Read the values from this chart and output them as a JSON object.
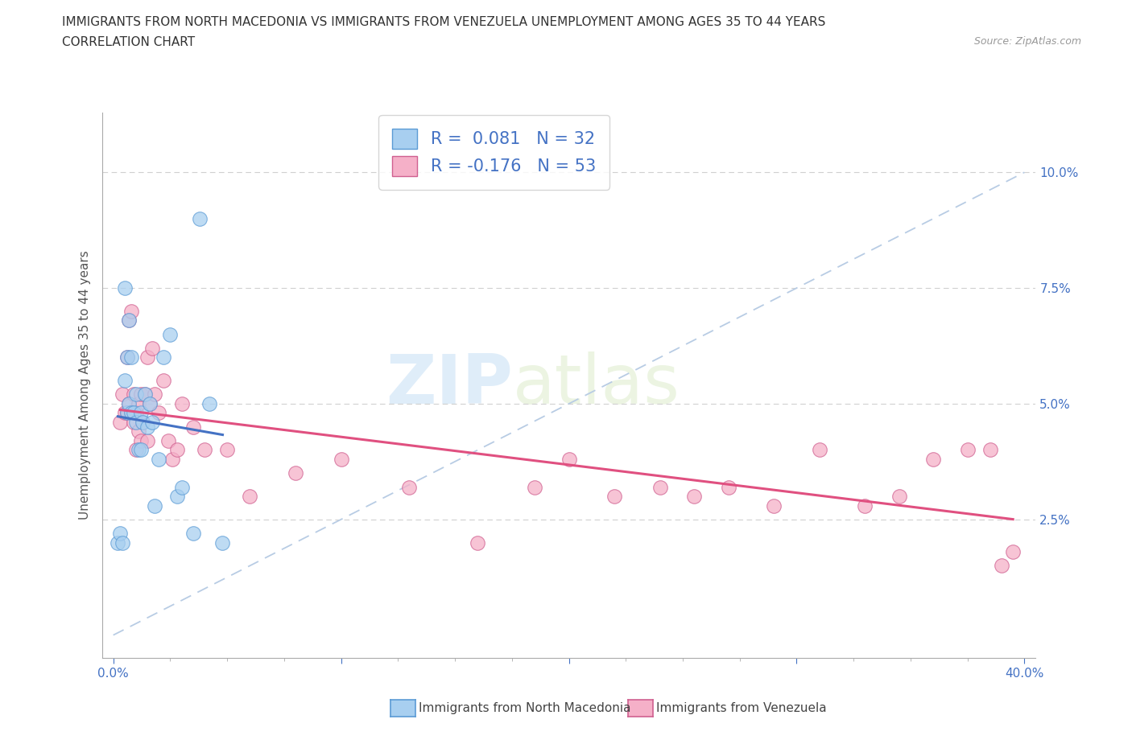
{
  "title_line1": "IMMIGRANTS FROM NORTH MACEDONIA VS IMMIGRANTS FROM VENEZUELA UNEMPLOYMENT AMONG AGES 35 TO 44 YEARS",
  "title_line2": "CORRELATION CHART",
  "source_text": "Source: ZipAtlas.com",
  "ylabel": "Unemployment Among Ages 35 to 44 years",
  "xlim": [
    -0.005,
    0.405
  ],
  "ylim": [
    -0.005,
    0.113
  ],
  "xticks": [
    0.0,
    0.1,
    0.2,
    0.3,
    0.4
  ],
  "xtick_labels": [
    "0.0%",
    "",
    "",
    "",
    "40.0%"
  ],
  "yticks": [
    0.025,
    0.05,
    0.075,
    0.1
  ],
  "ytick_labels": [
    "2.5%",
    "5.0%",
    "7.5%",
    "10.0%"
  ],
  "r_mac": 0.081,
  "n_mac": 32,
  "r_ven": -0.176,
  "n_ven": 53,
  "watermark_zip": "ZIP",
  "watermark_atlas": "atlas",
  "legend_label1": "Immigrants from North Macedonia",
  "legend_label2": "Immigrants from Venezuela",
  "color_mac_fill": "#a8cff0",
  "color_mac_edge": "#5b9bd5",
  "color_ven_fill": "#f5b0c8",
  "color_ven_edge": "#d06090",
  "color_mac_line": "#4472c4",
  "color_ven_line": "#e05080",
  "color_dash": "#b8cce4",
  "color_grid": "#d0d0d0",
  "background": "#ffffff",
  "mac_x": [
    0.002,
    0.003,
    0.004,
    0.005,
    0.005,
    0.006,
    0.006,
    0.007,
    0.007,
    0.008,
    0.008,
    0.009,
    0.01,
    0.01,
    0.011,
    0.012,
    0.012,
    0.013,
    0.014,
    0.015,
    0.016,
    0.017,
    0.018,
    0.02,
    0.022,
    0.025,
    0.028,
    0.03,
    0.035,
    0.038,
    0.042,
    0.048
  ],
  "mac_y": [
    0.02,
    0.022,
    0.02,
    0.055,
    0.075,
    0.048,
    0.06,
    0.05,
    0.068,
    0.048,
    0.06,
    0.048,
    0.046,
    0.052,
    0.04,
    0.04,
    0.048,
    0.046,
    0.052,
    0.045,
    0.05,
    0.046,
    0.028,
    0.038,
    0.06,
    0.065,
    0.03,
    0.032,
    0.022,
    0.09,
    0.05,
    0.02
  ],
  "ven_x": [
    0.003,
    0.004,
    0.005,
    0.006,
    0.006,
    0.007,
    0.007,
    0.008,
    0.008,
    0.009,
    0.009,
    0.01,
    0.01,
    0.011,
    0.011,
    0.012,
    0.012,
    0.013,
    0.014,
    0.015,
    0.015,
    0.016,
    0.017,
    0.018,
    0.02,
    0.022,
    0.024,
    0.026,
    0.028,
    0.03,
    0.035,
    0.04,
    0.05,
    0.06,
    0.08,
    0.1,
    0.13,
    0.16,
    0.185,
    0.2,
    0.22,
    0.24,
    0.255,
    0.27,
    0.29,
    0.31,
    0.33,
    0.345,
    0.36,
    0.375,
    0.385,
    0.39,
    0.395
  ],
  "ven_y": [
    0.046,
    0.052,
    0.048,
    0.048,
    0.06,
    0.05,
    0.068,
    0.048,
    0.07,
    0.046,
    0.052,
    0.04,
    0.048,
    0.044,
    0.05,
    0.042,
    0.052,
    0.046,
    0.052,
    0.042,
    0.06,
    0.05,
    0.062,
    0.052,
    0.048,
    0.055,
    0.042,
    0.038,
    0.04,
    0.05,
    0.045,
    0.04,
    0.04,
    0.03,
    0.035,
    0.038,
    0.032,
    0.02,
    0.032,
    0.038,
    0.03,
    0.032,
    0.03,
    0.032,
    0.028,
    0.04,
    0.028,
    0.03,
    0.038,
    0.04,
    0.04,
    0.015,
    0.018
  ]
}
